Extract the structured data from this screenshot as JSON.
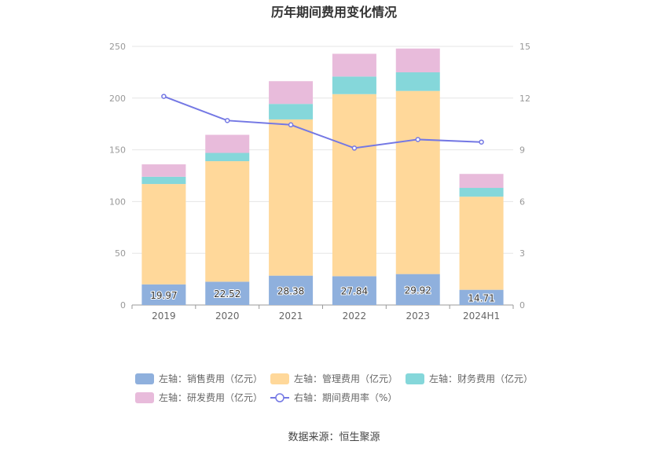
{
  "chart_data": {
    "type": "bar",
    "title": "历年期间费用变化情况",
    "categories": [
      "2019",
      "2020",
      "2021",
      "2022",
      "2023",
      "2024H1"
    ],
    "left_axis": {
      "ylim": [
        0,
        250
      ],
      "ticks": [
        0,
        50,
        100,
        150,
        200,
        250
      ]
    },
    "right_axis": {
      "ylim": [
        0,
        15
      ],
      "ticks": [
        0,
        3,
        6,
        9,
        12,
        15
      ]
    },
    "series": [
      {
        "name": "左轴：销售费用（亿元）",
        "axis": "left",
        "kind": "stacked-bar",
        "color": "#8fb0dd",
        "values": [
          19.97,
          22.52,
          28.38,
          27.84,
          29.92,
          14.71
        ],
        "show_labels": true
      },
      {
        "name": "左轴：管理费用（亿元）",
        "axis": "left",
        "kind": "stacked-bar",
        "color": "#ffd89a",
        "values": [
          97.0,
          116.5,
          151.0,
          176.0,
          177.0,
          90.0
        ],
        "show_labels": false
      },
      {
        "name": "左轴：财务费用（亿元）",
        "axis": "left",
        "kind": "stacked-bar",
        "color": "#85d7da",
        "values": [
          7.0,
          8.0,
          15.0,
          17.0,
          18.0,
          8.5
        ],
        "show_labels": false
      },
      {
        "name": "左轴：研发费用（亿元）",
        "axis": "left",
        "kind": "stacked-bar",
        "color": "#e8bbdb",
        "values": [
          12.0,
          17.5,
          22.0,
          22.0,
          23.0,
          13.5
        ],
        "show_labels": false
      },
      {
        "name": "右轴：期间费用率（%）",
        "axis": "right",
        "kind": "line",
        "color": "#7478e4",
        "values": [
          12.1,
          10.7,
          10.45,
          9.1,
          9.6,
          9.45
        ]
      }
    ],
    "legend_position": "bottom",
    "grid": true
  },
  "source_text": "数据来源：恒生聚源"
}
